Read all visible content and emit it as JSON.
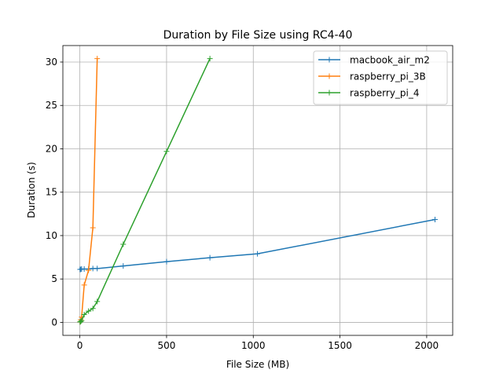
{
  "chart_data": {
    "type": "line",
    "title": "Duration by File Size using RC4-40",
    "xlabel": "File Size (MB)",
    "ylabel": "Duration (s)",
    "xlim": [
      -98,
      2150
    ],
    "ylim": [
      -1.5,
      31.9
    ],
    "xticks": [
      0,
      500,
      1000,
      1500,
      2000
    ],
    "yticks": [
      0,
      5,
      10,
      15,
      20,
      25,
      30
    ],
    "grid": true,
    "legend_position": "top-right",
    "series": [
      {
        "name": "macbook_air_m2",
        "color": "#1f77b4",
        "x": [
          1,
          5,
          10,
          25,
          50,
          75,
          100,
          250,
          500,
          750,
          1024,
          2048
        ],
        "y": [
          6.1,
          6.1,
          6.15,
          6.15,
          6.15,
          6.2,
          6.2,
          6.5,
          7.0,
          7.45,
          7.9,
          11.85
        ]
      },
      {
        "name": "raspberry_pi_3B",
        "color": "#ff7f0e",
        "x": [
          1,
          5,
          10,
          25,
          50,
          75,
          100
        ],
        "y": [
          0.05,
          0.3,
          0.6,
          4.3,
          6.0,
          10.9,
          30.4
        ]
      },
      {
        "name": "raspberry_pi_4",
        "color": "#2ca02c",
        "x": [
          1,
          5,
          10,
          25,
          50,
          75,
          100,
          250,
          500,
          750
        ],
        "y": [
          0.05,
          0.1,
          0.2,
          0.9,
          1.3,
          1.6,
          2.4,
          9.0,
          19.7,
          30.4
        ]
      }
    ]
  }
}
